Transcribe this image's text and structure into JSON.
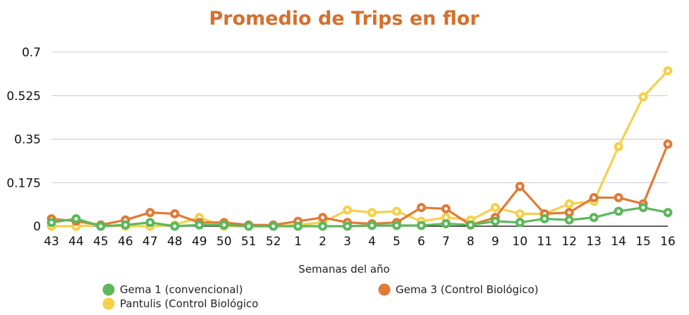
{
  "chart_data": {
    "type": "line",
    "title": "Promedio de Trips en flor",
    "xlabel": "Semanas del año",
    "ylabel": "",
    "ylim": [
      0,
      0.7
    ],
    "yticks": [
      "0",
      "0.175",
      "0.35",
      "0.525",
      "0.7"
    ],
    "ytick_values": [
      0,
      0.175,
      0.35,
      0.525,
      0.7
    ],
    "grid": "horizontal",
    "legend_position": "bottom",
    "categories": [
      "43",
      "44",
      "45",
      "46",
      "47",
      "48",
      "49",
      "50",
      "51",
      "52",
      "1",
      "2",
      "3",
      "4",
      "5",
      "6",
      "7",
      "8",
      "9",
      "10",
      "11",
      "12",
      "13",
      "14",
      "15",
      "16"
    ],
    "series": [
      {
        "name": "Gema 1 (convencional)",
        "color": "#5cb85c",
        "values": [
          0.015,
          0.03,
          0.0,
          0.005,
          0.015,
          0.0,
          0.005,
          0.005,
          0.0,
          0.0,
          0.0,
          0.0,
          0.0,
          0.003,
          0.003,
          0.003,
          0.01,
          0.005,
          0.02,
          0.015,
          0.03,
          0.025,
          0.035,
          0.06,
          0.075,
          0.055
        ]
      },
      {
        "name": "Gema 3 (Control Biológico)",
        "color": "#e07a36",
        "values": [
          0.03,
          0.02,
          0.005,
          0.025,
          0.055,
          0.05,
          0.015,
          0.015,
          0.005,
          0.005,
          0.02,
          0.035,
          0.015,
          0.01,
          0.015,
          0.075,
          0.07,
          0.005,
          0.035,
          0.16,
          0.05,
          0.055,
          0.115,
          0.115,
          0.09,
          0.33
        ]
      },
      {
        "name": "Pantulis (Control Biológico",
        "color": "#f5d04a",
        "values": [
          0.0,
          0.0,
          0.005,
          0.0,
          0.0,
          0.005,
          0.035,
          0.0,
          0.0,
          0.0,
          0.005,
          0.015,
          0.065,
          0.055,
          0.06,
          0.02,
          0.035,
          0.025,
          0.075,
          0.05,
          0.05,
          0.09,
          0.1,
          0.32,
          0.52,
          0.625
        ]
      }
    ]
  }
}
